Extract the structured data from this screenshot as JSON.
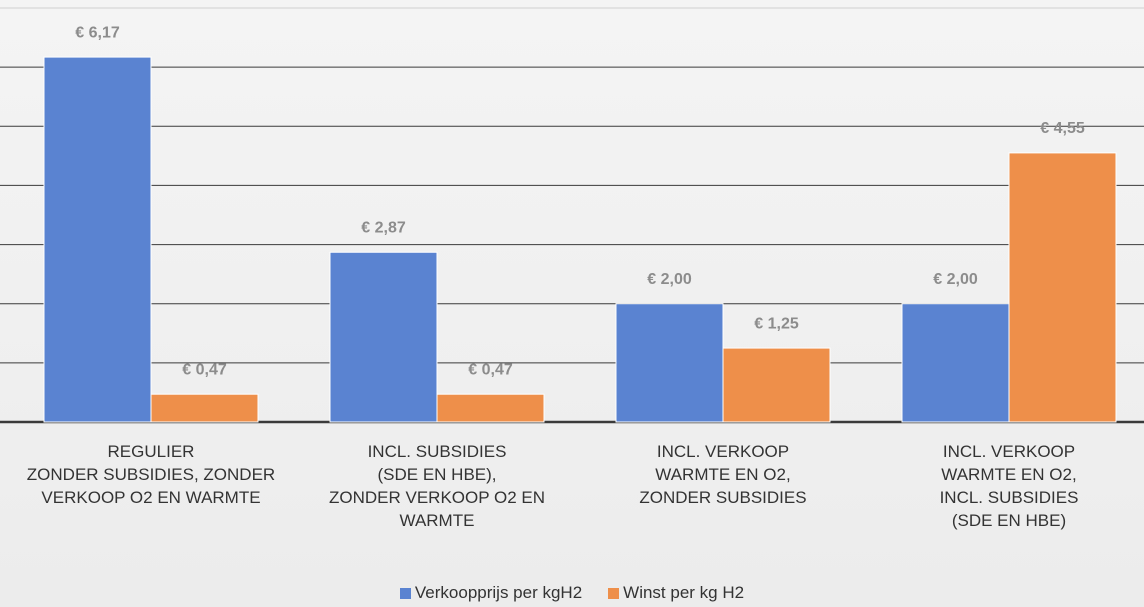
{
  "chart_data": {
    "type": "bar",
    "categories": [
      "REGULIER\nZONDER SUBSIDIES, ZONDER\nVERKOOP O2 EN WARMTE",
      "INCL. SUBSIDIES\n(SDE EN HBE),\nZONDER VERKOOP O2 EN\nWARMTE",
      "INCL. VERKOOP\nWARMTE EN O2,\nZONDER SUBSIDIES",
      "INCL. VERKOOP\nWARMTE EN O2,\nINCL. SUBSIDIES\n(SDE EN HBE)"
    ],
    "series": [
      {
        "name": "Verkoopprijs per kgH2",
        "color": "#5a83d1",
        "values": [
          6.17,
          2.87,
          2.0,
          2.0
        ],
        "value_labels": [
          "€ 6,17",
          "€ 2,87",
          "€ 2,00",
          "€ 2,00"
        ]
      },
      {
        "name": "Winst per kg H2",
        "color": "#ee8f4a",
        "values": [
          0.47,
          0.47,
          1.25,
          4.55
        ],
        "value_labels": [
          "€ 0,47",
          "€ 0,47",
          "€ 1,25",
          "€ 4,55"
        ]
      }
    ],
    "ylim": [
      0,
      7
    ],
    "yticks": [
      0,
      1,
      2,
      3,
      4,
      5,
      6,
      7
    ],
    "grid": true,
    "legend": "bottom"
  }
}
